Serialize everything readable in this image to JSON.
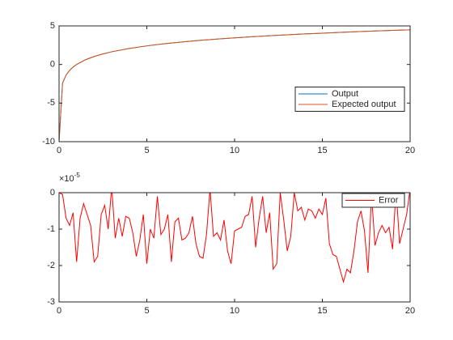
{
  "chart_data": [
    {
      "type": "line",
      "x": [
        0,
        0.2,
        0.4,
        0.6,
        0.8,
        1,
        1.5,
        2,
        2.5,
        3,
        4,
        5,
        6,
        7,
        8,
        9,
        10,
        11,
        12,
        13,
        14,
        15,
        16,
        17,
        18,
        19,
        20
      ],
      "series": [
        {
          "name": "Output",
          "color": "#0072BD",
          "values": [
            -10,
            -2.41,
            -1.37,
            -0.77,
            -0.33,
            0,
            0.61,
            1.04,
            1.37,
            1.65,
            2.08,
            2.41,
            2.69,
            2.92,
            3.12,
            3.3,
            3.45,
            3.6,
            3.73,
            3.85,
            3.96,
            4.06,
            4.16,
            4.25,
            4.34,
            4.42,
            4.49
          ]
        },
        {
          "name": "Expected output",
          "color": "#D95319",
          "values": [
            -10,
            -2.41,
            -1.37,
            -0.77,
            -0.33,
            0,
            0.61,
            1.04,
            1.37,
            1.65,
            2.08,
            2.41,
            2.69,
            2.92,
            3.12,
            3.3,
            3.45,
            3.6,
            3.73,
            3.85,
            3.96,
            4.06,
            4.16,
            4.25,
            4.34,
            4.42,
            4.49
          ]
        }
      ],
      "xlim": [
        0,
        20
      ],
      "xticks": [
        0,
        5,
        10,
        15,
        20
      ],
      "ylim": [
        -10,
        5
      ],
      "yticks": [
        -10,
        -5,
        0,
        5
      ],
      "legend": "east"
    },
    {
      "type": "line",
      "y_exponent": "×10",
      "y_exponent_power": "-5",
      "x": [
        0,
        0.2,
        0.4,
        0.6,
        0.8,
        1,
        1.2,
        1.4,
        1.6,
        1.8,
        2,
        2.2,
        2.4,
        2.6,
        2.8,
        3,
        3.2,
        3.4,
        3.6,
        3.8,
        4,
        4.2,
        4.4,
        4.6,
        4.8,
        5,
        5.2,
        5.4,
        5.6,
        5.8,
        6,
        6.2,
        6.4,
        6.6,
        6.8,
        7,
        7.2,
        7.4,
        7.6,
        7.8,
        8,
        8.2,
        8.4,
        8.6,
        8.8,
        9,
        9.2,
        9.4,
        9.6,
        9.8,
        10,
        10.2,
        10.4,
        10.6,
        10.8,
        11,
        11.2,
        11.4,
        11.6,
        11.8,
        12,
        12.2,
        12.4,
        12.6,
        12.8,
        13,
        13.2,
        13.4,
        13.6,
        13.8,
        14,
        14.2,
        14.4,
        14.6,
        14.8,
        15,
        15.2,
        15.4,
        15.6,
        15.8,
        16,
        16.2,
        16.4,
        16.6,
        16.8,
        17,
        17.2,
        17.4,
        17.6,
        17.8,
        18,
        18.2,
        18.4,
        18.6,
        18.8,
        19,
        19.2,
        19.4,
        19.6,
        19.8,
        20
      ],
      "series": [
        {
          "name": "Error",
          "color": "#FF0000",
          "values": [
            0,
            -0.05,
            -0.7,
            -0.9,
            -0.55,
            -1.9,
            -0.7,
            -0.3,
            -0.6,
            -0.9,
            -1.9,
            -1.75,
            -0.6,
            -0.35,
            -1.0,
            0.15,
            -1.25,
            -0.7,
            -1.2,
            -0.65,
            -0.7,
            -1.1,
            -1.75,
            -1.3,
            -0.6,
            -1.95,
            -1.0,
            -1.25,
            -0.1,
            -1.15,
            -1.0,
            -0.6,
            -1.9,
            -0.8,
            -0.7,
            -1.3,
            -1.25,
            -1.1,
            -0.65,
            -1.4,
            -1.75,
            -1.8,
            -1.15,
            0.1,
            -1.2,
            -1.1,
            -1.3,
            -0.75,
            -1.6,
            -1.95,
            -1.05,
            -1.0,
            -0.95,
            -0.65,
            -0.6,
            -0.1,
            -1.5,
            -0.7,
            -0.1,
            -1.1,
            -0.55,
            -2.1,
            -1.95,
            0,
            -0.75,
            -1.6,
            -1.2,
            0,
            -0.5,
            -0.4,
            -0.75,
            -0.45,
            -0.5,
            -0.7,
            -0.45,
            -0.6,
            -0.15,
            -1.4,
            -1.7,
            -1.75,
            -2.1,
            -2.45,
            -2.1,
            -2.2,
            -1.6,
            -0.8,
            -0.5,
            -1.05,
            -2.2,
            -0.05,
            -1.45,
            -1.1,
            -0.9,
            -1.1,
            -0.95,
            -1.55,
            0.1,
            -1.4,
            -1.0,
            -0.6,
            0.1
          ]
        }
      ],
      "xlim": [
        0,
        20
      ],
      "xticks": [
        0,
        5,
        10,
        15,
        20
      ],
      "ylim": [
        -3,
        0
      ],
      "yticks": [
        -3,
        -2,
        -1,
        0
      ],
      "legend": "northeast"
    }
  ]
}
